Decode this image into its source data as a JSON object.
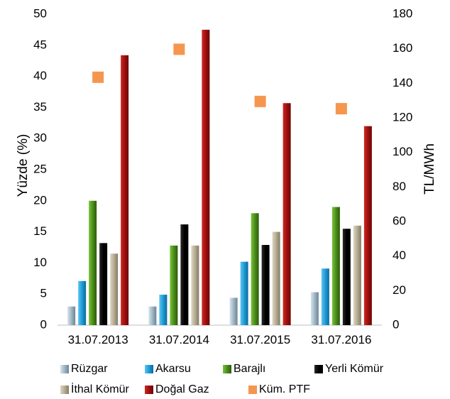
{
  "chart_data": {
    "type": "bar",
    "categories": [
      "31.07.2013",
      "31.07.2014",
      "31.07.2015",
      "31.07.2016"
    ],
    "series": [
      {
        "name": "Rüzgar",
        "axis": "left",
        "color": "#9fb6c4",
        "values": [
          3.0,
          3.0,
          4.4,
          5.3
        ]
      },
      {
        "name": "Akarsu",
        "axis": "left",
        "color": "#1f9bd6",
        "values": [
          7.1,
          4.9,
          10.2,
          9.1
        ]
      },
      {
        "name": "Barajlı",
        "axis": "left",
        "color": "#4a8f1a",
        "values": [
          20.0,
          12.8,
          18.0,
          19.0
        ]
      },
      {
        "name": "Yerli Kömür",
        "axis": "left",
        "color": "#000000",
        "values": [
          13.2,
          16.2,
          12.9,
          15.5
        ]
      },
      {
        "name": "İthal Kömür",
        "axis": "left",
        "color": "#b4ab92",
        "values": [
          11.5,
          12.8,
          15.0,
          16.0
        ]
      },
      {
        "name": "Doğal Gaz",
        "axis": "left",
        "color": "#a00e0e",
        "values": [
          43.4,
          47.5,
          35.7,
          32.0
        ]
      },
      {
        "name": "Küm. PTF",
        "axis": "right",
        "type": "scatter",
        "color": "#f5964f",
        "values": [
          143.5,
          159.7,
          129.5,
          125.3
        ]
      }
    ],
    "ylabel": "Yüzde (%)",
    "y2label": "TL/MWh",
    "ylim": [
      0,
      50
    ],
    "y2lim": [
      0,
      180
    ],
    "yticks": [
      "0",
      "5",
      "10",
      "15",
      "20",
      "25",
      "30",
      "35",
      "40",
      "45",
      "50"
    ],
    "y2ticks": [
      "0",
      "20",
      "40",
      "60",
      "80",
      "100",
      "120",
      "140",
      "160",
      "180"
    ],
    "grid": false,
    "legend": "bottom"
  }
}
